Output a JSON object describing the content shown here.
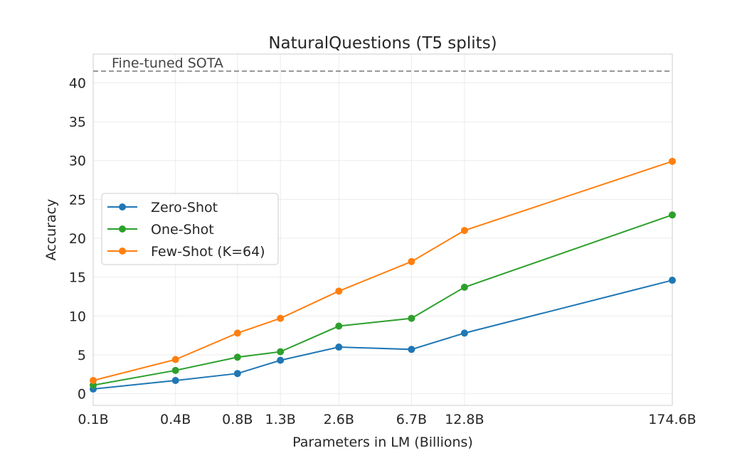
{
  "chart_data": {
    "type": "line",
    "title": "NaturalQuestions (T5 splits)",
    "xlabel": "Parameters in LM (Billions)",
    "ylabel": "Accuracy",
    "x_scale": "log",
    "x": [
      0.125,
      0.35,
      0.76,
      1.3,
      2.7,
      6.7,
      13,
      175
    ],
    "x_tick_labels": [
      "0.1B",
      "0.4B",
      "0.8B",
      "1.3B",
      "2.6B",
      "6.7B",
      "12.8B",
      "174.6B"
    ],
    "y_ticks": [
      0,
      5,
      10,
      15,
      20,
      25,
      30,
      35,
      40
    ],
    "ylim": [
      -1.5,
      43.7
    ],
    "grid": true,
    "legend_position": "center-left",
    "series": [
      {
        "name": "Zero-Shot",
        "color": "#1f77b4",
        "values": [
          0.6,
          1.7,
          2.6,
          4.3,
          6.0,
          5.7,
          7.8,
          14.6
        ]
      },
      {
        "name": "One-Shot",
        "color": "#2ca02c",
        "values": [
          1.1,
          3.0,
          4.7,
          5.4,
          8.7,
          9.7,
          13.7,
          23.0
        ]
      },
      {
        "name": "Few-Shot (K=64)",
        "color": "#ff7f0e",
        "values": [
          1.7,
          4.4,
          7.8,
          9.7,
          13.2,
          17.0,
          21.0,
          29.9
        ]
      }
    ],
    "annotations": [
      {
        "text": "Fine-tuned SOTA",
        "y": 41.5,
        "style": "dashed",
        "color": "#999999"
      }
    ]
  }
}
